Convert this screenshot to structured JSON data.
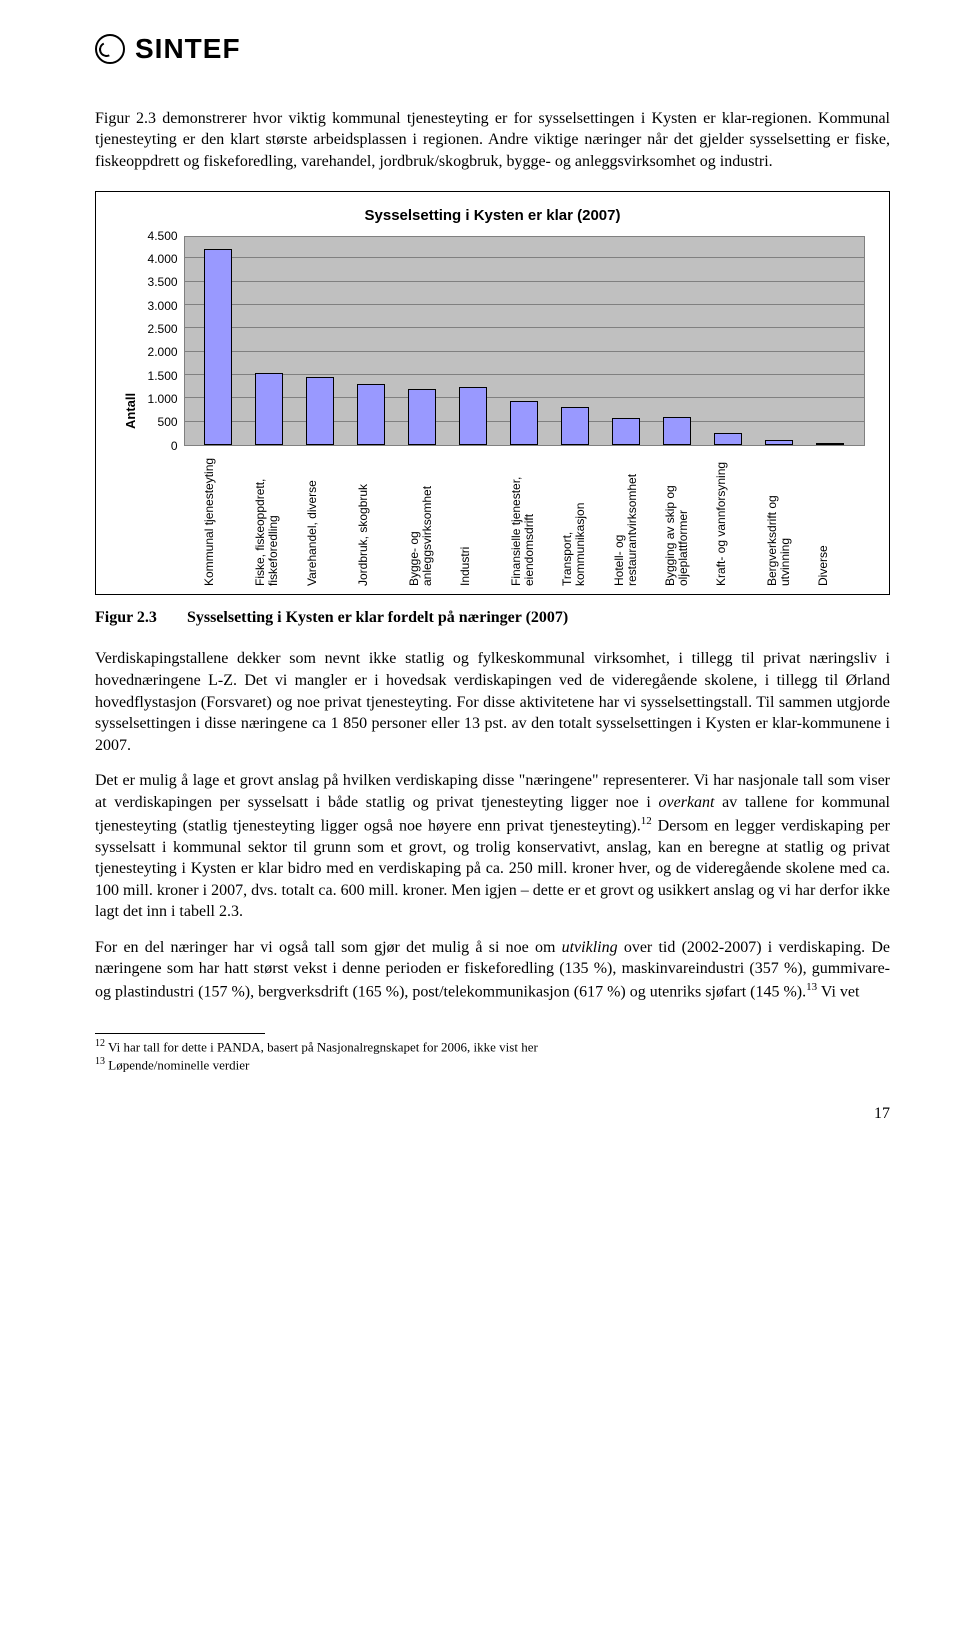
{
  "logo": {
    "text": "SINTEF"
  },
  "para1": "Figur 2.3 demonstrerer hvor viktig kommunal tjenesteyting er for sysselsettingen i Kysten er klar-regionen. Kommunal tjenesteyting er den klart største arbeidsplassen i regionen. Andre viktige næringer når det gjelder sysselsetting er fiske, fiskeoppdrett og fiskeforedling, varehandel, jordbruk/skogbruk, bygge- og anleggsvirksomhet og industri.",
  "chart": {
    "type": "bar",
    "title": "Sysselsetting i Kysten er klar (2007)",
    "ylabel": "Antall",
    "ylim": [
      0,
      4500
    ],
    "ytick_step": 500,
    "yticks": [
      "4.500",
      "4.000",
      "3.500",
      "3.000",
      "2.500",
      "2.000",
      "1.500",
      "1.000",
      "500",
      "0"
    ],
    "background_color": "#c0c0c0",
    "grid_color": "#808080",
    "bar_color": "#9999ff",
    "bar_border": "#000000",
    "title_fontsize": 15,
    "label_fontsize": 12,
    "categories": [
      "Kommunal tjenesteyting",
      "Fiske, fiskeoppdrett, fiskeforedling",
      "Varehandel, diverse",
      "Jordbruk, skogbruk",
      "Bygge- og anleggsvirksomhet",
      "Industri",
      "Finansielle tjenester, eiendomsdrift",
      "Transport, kommunikasjon",
      "Hotell- og restaurantvirksomhet",
      "Bygging av skip og oljeplattformer",
      "Kraft- og vannforsyning",
      "Bergverksdrift og utvinning",
      "Diverse"
    ],
    "values": [
      4200,
      1550,
      1450,
      1300,
      1200,
      1250,
      950,
      820,
      580,
      600,
      250,
      100,
      30
    ]
  },
  "figure": {
    "label": "Figur 2.3",
    "caption": "Sysselsetting i Kysten er klar fordelt på næringer (2007)"
  },
  "para2_html": "Verdiskapingstallene dekker som nevnt ikke statlig og fylkeskommunal virksomhet, i tillegg til privat næringsliv i hovednæringene L-Z. Det vi mangler er i hovedsak verdiskapingen ved de videregående skolene, i tillegg til Ørland hovedflystasjon (Forsvaret) og noe privat tjenesteyting. For disse aktivitetene har vi sysselsettingstall. Til sammen utgjorde sysselsettingen i disse næringene ca 1 850 personer eller 13 pst. av den totalt sysselsettingen i Kysten er klar-kommunene i 2007.",
  "para3_pre": "Det er mulig å lage et grovt anslag på hvilken verdiskaping disse \"næringene\" representerer. Vi har nasjonale tall som viser at verdiskapingen per sysselsatt i både statlig og privat tjenesteyting ligger noe i ",
  "para3_em": "overkant",
  "para3_post": " av tallene for kommunal tjenesteyting (statlig tjenesteyting ligger også noe høyere enn privat tjenesteyting).",
  "para3_sup": "12",
  "para3_tail": " Dersom en legger verdiskaping per sysselsatt i kommunal sektor til grunn som et grovt, og trolig konservativt, anslag, kan en beregne at statlig og privat tjenesteyting i Kysten er klar bidro med en verdiskaping på ca. 250 mill. kroner hver, og de videregående skolene med ca. 100 mill. kroner i 2007, dvs. totalt ca. 600 mill. kroner. Men igjen – dette er et grovt og usikkert anslag og vi har derfor ikke lagt det inn i tabell 2.3.",
  "para4_pre": "For en del næringer har vi også tall som gjør det mulig å si noe om ",
  "para4_em": "utvikling",
  "para4_mid": " over tid (2002-2007) i verdiskaping. De næringene som har hatt størst vekst i denne perioden er fiskeforedling (135 %), maskinvareindustri (357 %), gummivare- og plastindustri (157 %), bergverksdrift (165 %), post/telekommunikasjon (617 %) og utenriks sjøfart (145 %).",
  "para4_sup": "13",
  "para4_tail": " Vi vet",
  "footnotes": {
    "f12": "Vi har tall for dette i PANDA, basert på Nasjonalregnskapet for 2006, ikke vist her",
    "f13": "Løpende/nominelle verdier"
  },
  "page_number": "17"
}
